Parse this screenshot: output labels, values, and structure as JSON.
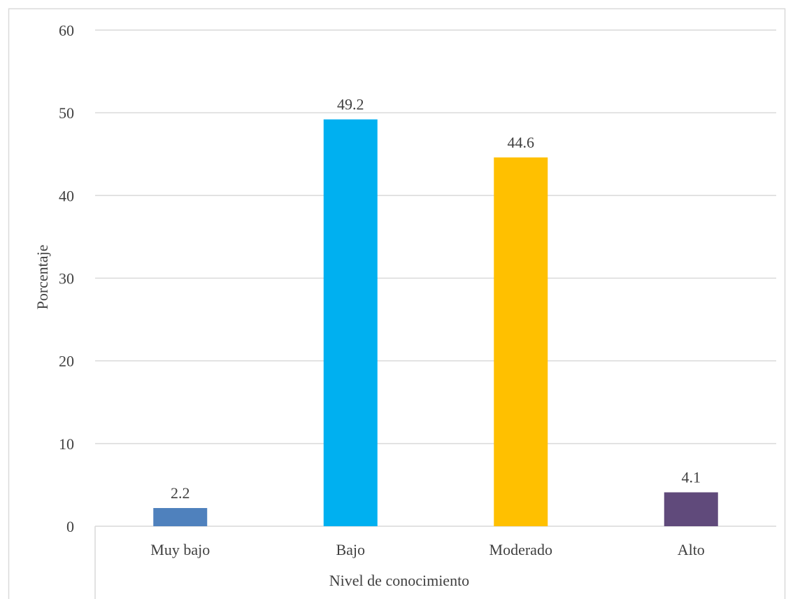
{
  "chart_data": {
    "type": "bar",
    "title": "",
    "xlabel": "Nivel de conocimiento",
    "ylabel": "Porcentaje",
    "categories": [
      "Muy bajo",
      "Bajo",
      "Moderado",
      "Alto"
    ],
    "values": [
      2.2,
      49.2,
      44.6,
      4.1
    ],
    "data_labels": [
      "2.2",
      "49.2",
      "44.6",
      "4.1"
    ],
    "bar_colors": [
      "#4f81bd",
      "#00b0f0",
      "#ffc000",
      "#604a7b"
    ],
    "ylim": [
      0,
      60
    ],
    "yticks": [
      0,
      10,
      20,
      30,
      40,
      50,
      60
    ],
    "ytick_labels": [
      "0",
      "10",
      "20",
      "30",
      "40",
      "50",
      "60"
    ],
    "grid": true,
    "legend": "none"
  },
  "colors": {
    "gridline": "#d9d9d9",
    "frame": "#d9d9d9",
    "text": "#404040",
    "background": "#ffffff"
  }
}
